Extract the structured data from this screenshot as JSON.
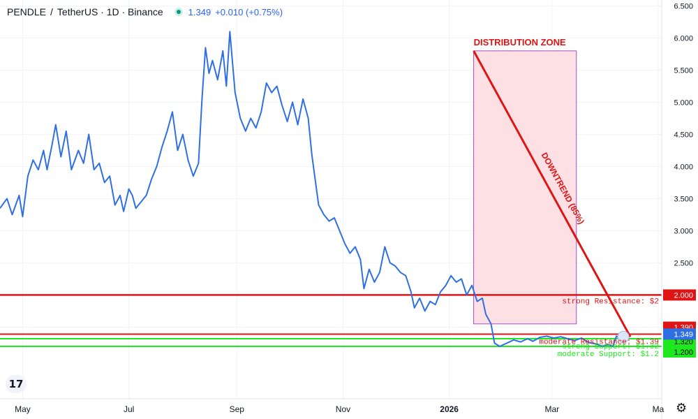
{
  "header": {
    "symbol": "PENDLE",
    "separator": "/",
    "quote": "TetherUS · 1D · Binance",
    "price": "1.349",
    "change": "+0.010 (+0.75%)"
  },
  "icons": {
    "logo": "tradingview-logo-icon",
    "logo_text": "17",
    "settings": "gear-icon"
  },
  "colors": {
    "price_line": "#2f6fe4",
    "resistance": "#e01414",
    "support": "#1ee81e",
    "zone_fill": "#fde0e4",
    "zone_border": "#a64dc6",
    "current_price_tag": "#2f6fe4"
  },
  "chart_data": {
    "type": "line",
    "title": "PENDLE / TetherUS · 1D · Binance",
    "x_ticks": [
      "May",
      "Jul",
      "Sep",
      "Nov",
      "2026",
      "Mar",
      "Ma"
    ],
    "y_ticks": [
      "6.500",
      "6.000",
      "5.500",
      "5.000",
      "4.500",
      "4.000",
      "3.500",
      "3.000",
      "2.500"
    ],
    "ylim": [
      1.0,
      6.6
    ],
    "xlim": [
      "2025-04-18",
      "2026-05-03"
    ],
    "grid": true,
    "series": [
      {
        "values": [
          [
            "2025-04-18",
            3.35
          ],
          [
            "2025-04-22",
            3.5
          ],
          [
            "2025-04-25",
            3.25
          ],
          [
            "2025-04-29",
            3.55
          ],
          [
            "2025-05-01",
            3.22
          ],
          [
            "2025-05-04",
            3.85
          ],
          [
            "2025-05-07",
            4.1
          ],
          [
            "2025-05-10",
            3.95
          ],
          [
            "2025-05-13",
            4.25
          ],
          [
            "2025-05-15",
            3.95
          ],
          [
            "2025-05-18",
            4.35
          ],
          [
            "2025-05-20",
            4.65
          ],
          [
            "2025-05-23",
            4.15
          ],
          [
            "2025-05-26",
            4.55
          ],
          [
            "2025-05-29",
            3.95
          ],
          [
            "2025-06-02",
            4.25
          ],
          [
            "2025-06-05",
            4.05
          ],
          [
            "2025-06-08",
            4.5
          ],
          [
            "2025-06-11",
            3.95
          ],
          [
            "2025-06-14",
            4.05
          ],
          [
            "2025-06-17",
            3.75
          ],
          [
            "2025-06-20",
            3.85
          ],
          [
            "2025-06-23",
            3.4
          ],
          [
            "2025-06-26",
            3.55
          ],
          [
            "2025-06-28",
            3.3
          ],
          [
            "2025-07-01",
            3.65
          ],
          [
            "2025-07-03",
            3.55
          ],
          [
            "2025-07-05",
            3.35
          ],
          [
            "2025-07-08",
            3.45
          ],
          [
            "2025-07-11",
            3.55
          ],
          [
            "2025-07-14",
            3.8
          ],
          [
            "2025-07-17",
            4.0
          ],
          [
            "2025-07-20",
            4.3
          ],
          [
            "2025-07-23",
            4.55
          ],
          [
            "2025-07-26",
            4.85
          ],
          [
            "2025-07-29",
            4.25
          ],
          [
            "2025-08-01",
            4.5
          ],
          [
            "2025-08-04",
            4.1
          ],
          [
            "2025-08-07",
            3.85
          ],
          [
            "2025-08-10",
            4.05
          ],
          [
            "2025-08-12",
            5.05
          ],
          [
            "2025-08-14",
            5.85
          ],
          [
            "2025-08-16",
            5.45
          ],
          [
            "2025-08-18",
            5.65
          ],
          [
            "2025-08-21",
            5.35
          ],
          [
            "2025-08-24",
            5.8
          ],
          [
            "2025-08-26",
            5.25
          ],
          [
            "2025-08-28",
            6.1
          ],
          [
            "2025-08-31",
            5.15
          ],
          [
            "2025-09-03",
            4.75
          ],
          [
            "2025-09-06",
            4.55
          ],
          [
            "2025-09-09",
            4.75
          ],
          [
            "2025-09-12",
            4.6
          ],
          [
            "2025-09-15",
            4.85
          ],
          [
            "2025-09-18",
            5.3
          ],
          [
            "2025-09-21",
            5.15
          ],
          [
            "2025-09-24",
            5.25
          ],
          [
            "2025-09-27",
            4.95
          ],
          [
            "2025-09-30",
            4.7
          ],
          [
            "2025-10-03",
            5.0
          ],
          [
            "2025-10-06",
            4.65
          ],
          [
            "2025-10-09",
            5.05
          ],
          [
            "2025-10-12",
            4.75
          ],
          [
            "2025-10-14",
            4.2
          ],
          [
            "2025-10-16",
            3.8
          ],
          [
            "2025-10-18",
            3.4
          ],
          [
            "2025-10-21",
            3.25
          ],
          [
            "2025-10-24",
            3.15
          ],
          [
            "2025-10-27",
            3.2
          ],
          [
            "2025-10-30",
            3.0
          ],
          [
            "2025-11-02",
            2.8
          ],
          [
            "2025-11-05",
            2.65
          ],
          [
            "2025-11-08",
            2.75
          ],
          [
            "2025-11-11",
            2.55
          ],
          [
            "2025-11-13",
            2.1
          ],
          [
            "2025-11-16",
            2.4
          ],
          [
            "2025-11-19",
            2.2
          ],
          [
            "2025-11-22",
            2.35
          ],
          [
            "2025-11-25",
            2.75
          ],
          [
            "2025-11-28",
            2.5
          ],
          [
            "2025-12-01",
            2.45
          ],
          [
            "2025-12-04",
            2.35
          ],
          [
            "2025-12-07",
            2.3
          ],
          [
            "2025-12-10",
            2.05
          ],
          [
            "2025-12-12",
            1.8
          ],
          [
            "2025-12-15",
            1.95
          ],
          [
            "2025-12-18",
            1.75
          ],
          [
            "2025-12-21",
            1.9
          ],
          [
            "2025-12-24",
            1.85
          ],
          [
            "2025-12-27",
            2.05
          ],
          [
            "2025-12-30",
            2.15
          ],
          [
            "2026-01-02",
            2.3
          ],
          [
            "2026-01-05",
            2.2
          ],
          [
            "2026-01-08",
            2.25
          ],
          [
            "2026-01-11",
            2.0
          ],
          [
            "2026-01-14",
            2.15
          ],
          [
            "2026-01-17",
            1.9
          ],
          [
            "2026-01-20",
            1.95
          ],
          [
            "2026-01-22",
            1.7
          ],
          [
            "2026-01-25",
            1.55
          ],
          [
            "2026-01-27",
            1.25
          ],
          [
            "2026-01-30",
            1.2
          ],
          [
            "2026-02-03",
            1.25
          ],
          [
            "2026-02-07",
            1.3
          ],
          [
            "2026-02-11",
            1.27
          ],
          [
            "2026-02-15",
            1.32
          ],
          [
            "2026-02-18",
            1.28
          ],
          [
            "2026-02-22",
            1.34
          ],
          [
            "2026-02-26",
            1.36
          ],
          [
            "2026-03-02",
            1.33
          ],
          [
            "2026-03-06",
            1.35
          ],
          [
            "2026-03-10",
            1.32
          ],
          [
            "2026-03-14",
            1.29
          ],
          [
            "2026-03-18",
            1.33
          ],
          [
            "2026-03-22",
            1.26
          ],
          [
            "2026-03-26",
            1.24
          ],
          [
            "2026-03-30",
            1.2
          ],
          [
            "2026-04-02",
            1.23
          ],
          [
            "2026-04-05",
            1.2
          ],
          [
            "2026-04-07",
            1.36
          ],
          [
            "2026-04-09",
            1.32
          ],
          [
            "2026-04-11",
            1.349
          ]
        ]
      }
    ],
    "levels": [
      {
        "value": 2.0,
        "label": "strong Resistance: $2",
        "color": "#e01414",
        "tag": "2.000"
      },
      {
        "value": 1.39,
        "label": "moderate Resistance: $1.39",
        "color": "#e01414",
        "tag": "1.390"
      },
      {
        "value": 1.32,
        "label": "strong Support: $1.32",
        "color": "#1ee81e",
        "tag": "1.320"
      },
      {
        "value": 1.2,
        "label": "moderate Support: $1.2",
        "color": "#1ee81e",
        "tag": "1.200"
      }
    ],
    "current_price": {
      "value": 1.349,
      "tag": "1.349"
    },
    "zone": {
      "label": "DISTRIBUTION ZONE",
      "x0": "2026-01-15",
      "x1": "2026-03-15",
      "y0": 1.55,
      "y1": 5.8
    },
    "trendline": {
      "label": "DOWNTREND (85%)",
      "from": [
        "2026-01-15",
        5.8
      ],
      "to": [
        "2026-04-15",
        1.349
      ]
    }
  }
}
